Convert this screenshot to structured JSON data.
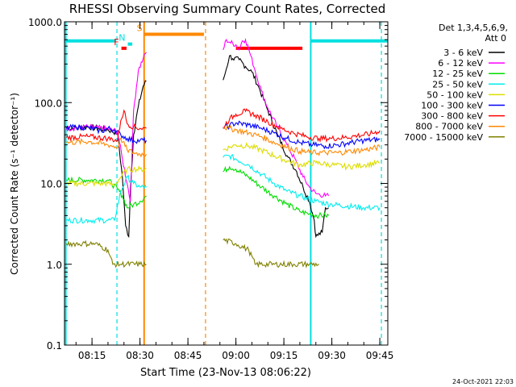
{
  "chart_data": {
    "type": "line",
    "title": "RHESSI Observing Summary Count Rates, Corrected",
    "xlabel": "Start Time (23-Nov-13 08:06:22)",
    "ylabel": "Corrected Count Rate (s⁻¹ detector⁻¹)",
    "ylim": [
      0.1,
      1000
    ],
    "y_scale": "log",
    "xlim_minutes_of_day": [
      486.4,
      587.5
    ],
    "x_ticks": [
      {
        "label": "08:15",
        "t": 495
      },
      {
        "label": "08:30",
        "t": 510
      },
      {
        "label": "08:45",
        "t": 525
      },
      {
        "label": "09:00",
        "t": 540
      },
      {
        "label": "09:15",
        "t": 555
      },
      {
        "label": "09:30",
        "t": 570
      },
      {
        "label": "09:45",
        "t": 585
      }
    ],
    "y_ticks": [
      {
        "label": "0.1",
        "v": 0.1
      },
      {
        "label": "1.0",
        "v": 1
      },
      {
        "label": "10.0",
        "v": 10
      },
      {
        "label": "100.0",
        "v": 100
      },
      {
        "label": "1000.0",
        "v": 1000
      }
    ],
    "legend_header": [
      "Det 1,3,4,5,6,9,",
      "Att 0"
    ],
    "legend_position": "right",
    "timestamp": "24-Oct-2021 22:03",
    "series": [
      {
        "name": "3 - 6 keV",
        "color": "#000000",
        "points": [
          [
            487,
            48
          ],
          [
            494,
            50
          ],
          [
            500,
            46
          ],
          [
            503,
            42
          ],
          [
            504.5,
            12
          ],
          [
            505.5,
            3
          ],
          [
            506.5,
            2.2
          ],
          [
            507,
            8
          ],
          [
            508,
            40
          ],
          [
            509.5,
            90
          ],
          [
            511,
            160
          ],
          [
            512,
            185
          ],
          [
            536,
            190
          ],
          [
            537,
            260
          ],
          [
            538,
            380
          ],
          [
            539,
            350
          ],
          [
            541,
            340
          ],
          [
            543,
            280
          ],
          [
            545,
            240
          ],
          [
            547,
            160
          ],
          [
            550,
            80
          ],
          [
            553,
            40
          ],
          [
            556,
            22
          ],
          [
            559,
            14
          ],
          [
            561,
            9
          ],
          [
            563,
            6
          ],
          [
            564.5,
            3.5
          ],
          [
            565,
            2.2
          ],
          [
            567,
            2.5
          ],
          [
            568,
            5
          ],
          [
            569,
            5
          ]
        ]
      },
      {
        "name": "6 - 12 keV",
        "color": "#ff00ff",
        "points": [
          [
            487,
            48
          ],
          [
            494,
            50
          ],
          [
            500,
            47
          ],
          [
            503,
            44
          ],
          [
            504.5,
            20
          ],
          [
            506,
            10
          ],
          [
            507,
            6
          ],
          [
            508,
            80
          ],
          [
            509.5,
            250
          ],
          [
            511,
            350
          ],
          [
            512,
            420
          ],
          [
            536,
            450
          ],
          [
            537,
            600
          ],
          [
            538,
            560
          ],
          [
            540,
            520
          ],
          [
            541,
            450
          ],
          [
            542,
            580
          ],
          [
            543,
            600
          ],
          [
            544,
            460
          ],
          [
            546,
            250
          ],
          [
            548,
            140
          ],
          [
            550,
            85
          ],
          [
            553,
            50
          ],
          [
            556,
            30
          ],
          [
            559,
            18
          ],
          [
            561,
            12
          ],
          [
            563,
            9
          ],
          [
            565,
            7.5
          ],
          [
            568,
            7
          ],
          [
            569,
            7
          ]
        ]
      },
      {
        "name": "12 - 25 keV",
        "color": "#00dd00",
        "points": [
          [
            487,
            11
          ],
          [
            494,
            11
          ],
          [
            500,
            11
          ],
          [
            503,
            8.5
          ],
          [
            504.5,
            7
          ],
          [
            506,
            5
          ],
          [
            508,
            5.5
          ],
          [
            510,
            6
          ],
          [
            512,
            7
          ],
          [
            536,
            14
          ],
          [
            538,
            16
          ],
          [
            540,
            15
          ],
          [
            544,
            12
          ],
          [
            548,
            9
          ],
          [
            552,
            7
          ],
          [
            556,
            5.5
          ],
          [
            560,
            4.5
          ],
          [
            563,
            4.2
          ],
          [
            566,
            4
          ],
          [
            568,
            4
          ],
          [
            569,
            4
          ]
        ]
      },
      {
        "name": "25 - 50 keV",
        "color": "#00eeee",
        "points": [
          [
            487,
            3.5
          ],
          [
            494,
            3.5
          ],
          [
            500,
            3.5
          ],
          [
            502,
            3.5
          ],
          [
            504,
            8
          ],
          [
            506,
            12
          ],
          [
            508,
            10
          ],
          [
            510,
            9
          ],
          [
            512,
            9
          ],
          [
            536,
            21
          ],
          [
            538,
            22
          ],
          [
            540,
            20
          ],
          [
            544,
            17
          ],
          [
            548,
            13
          ],
          [
            552,
            10
          ],
          [
            556,
            8
          ],
          [
            560,
            7
          ],
          [
            565,
            6
          ],
          [
            570,
            5.5
          ],
          [
            580,
            5
          ],
          [
            585,
            5
          ]
        ]
      },
      {
        "name": "50 - 100 keV",
        "color": "#dddd00",
        "points": [
          [
            487,
            10
          ],
          [
            494,
            10
          ],
          [
            500,
            10
          ],
          [
            502,
            9.5
          ],
          [
            504,
            12
          ],
          [
            506,
            15
          ],
          [
            508,
            15
          ],
          [
            510,
            15
          ],
          [
            512,
            15
          ],
          [
            536,
            26
          ],
          [
            538,
            28
          ],
          [
            540,
            30
          ],
          [
            544,
            29
          ],
          [
            548,
            26
          ],
          [
            552,
            22
          ],
          [
            556,
            19
          ],
          [
            560,
            17
          ],
          [
            565,
            18
          ],
          [
            570,
            17
          ],
          [
            575,
            16
          ],
          [
            580,
            17
          ],
          [
            585,
            18
          ]
        ]
      },
      {
        "name": "100 - 300 keV",
        "color": "#0000ff",
        "points": [
          [
            487,
            48
          ],
          [
            490,
            50
          ],
          [
            494,
            49
          ],
          [
            498,
            44
          ],
          [
            500,
            48
          ],
          [
            502,
            46
          ],
          [
            504,
            40
          ],
          [
            506,
            36
          ],
          [
            508,
            34
          ],
          [
            510,
            34
          ],
          [
            512,
            34
          ],
          [
            536,
            48
          ],
          [
            538,
            52
          ],
          [
            540,
            56
          ],
          [
            544,
            53
          ],
          [
            548,
            48
          ],
          [
            552,
            42
          ],
          [
            556,
            36
          ],
          [
            560,
            32
          ],
          [
            564,
            30
          ],
          [
            568,
            29
          ],
          [
            572,
            30
          ],
          [
            576,
            32
          ],
          [
            580,
            34
          ],
          [
            585,
            35
          ]
        ]
      },
      {
        "name": "300 - 800 keV",
        "color": "#ff0000",
        "points": [
          [
            487,
            37
          ],
          [
            494,
            38
          ],
          [
            500,
            36
          ],
          [
            503,
            34
          ],
          [
            504,
            60
          ],
          [
            505,
            80
          ],
          [
            506,
            55
          ],
          [
            508,
            50
          ],
          [
            510,
            48
          ],
          [
            512,
            48
          ],
          [
            536,
            50
          ],
          [
            538,
            62
          ],
          [
            540,
            72
          ],
          [
            543,
            78
          ],
          [
            546,
            70
          ],
          [
            550,
            58
          ],
          [
            554,
            48
          ],
          [
            558,
            42
          ],
          [
            562,
            38
          ],
          [
            566,
            36
          ],
          [
            570,
            36
          ],
          [
            574,
            37
          ],
          [
            578,
            39
          ],
          [
            582,
            41
          ],
          [
            585,
            45
          ]
        ]
      },
      {
        "name": "800 - 7000 keV",
        "color": "#ff8800",
        "points": [
          [
            487,
            32
          ],
          [
            494,
            33
          ],
          [
            500,
            30
          ],
          [
            503,
            28
          ],
          [
            504,
            36
          ],
          [
            506,
            26
          ],
          [
            508,
            24
          ],
          [
            510,
            23
          ],
          [
            512,
            23
          ],
          [
            536,
            50
          ],
          [
            538,
            48
          ],
          [
            540,
            46
          ],
          [
            544,
            42
          ],
          [
            548,
            38
          ],
          [
            552,
            32
          ],
          [
            556,
            28
          ],
          [
            560,
            25
          ],
          [
            564,
            24
          ],
          [
            568,
            24
          ],
          [
            572,
            24
          ],
          [
            576,
            25
          ],
          [
            580,
            26
          ],
          [
            585,
            28
          ]
        ]
      },
      {
        "name": "7000 - 15000 keV",
        "color": "#808000",
        "points": [
          [
            487,
            1.8
          ],
          [
            492,
            1.8
          ],
          [
            496,
            1.8
          ],
          [
            500,
            1.5
          ],
          [
            501.5,
            1.0
          ],
          [
            504,
            1.0
          ],
          [
            510,
            1.0
          ],
          [
            512,
            1.0
          ],
          [
            536,
            2.0
          ],
          [
            540,
            1.8
          ],
          [
            544,
            1.5
          ],
          [
            546,
            1.0
          ],
          [
            552,
            1.0
          ],
          [
            558,
            1.0
          ],
          [
            563,
            1.0
          ],
          [
            566,
            1.0
          ]
        ]
      }
    ],
    "state_bars": [
      {
        "label": "",
        "color": "#00e0e0",
        "t0": 486.4,
        "t1": 502.5,
        "v": 580
      },
      {
        "label": "F",
        "color": "#ff0000",
        "t0": 504.2,
        "t1": 505.8,
        "v": 470
      },
      {
        "label": "N",
        "color": "#00e0e0",
        "t0": 506.2,
        "t1": 507.6,
        "v": 530
      },
      {
        "label": "S",
        "color": "#ff8800",
        "t0": 511.5,
        "t1": 530,
        "v": 700
      },
      {
        "label": "",
        "color": "#ff0000",
        "t0": 540,
        "t1": 560.8,
        "v": 470
      },
      {
        "label": "",
        "color": "#00e0e0",
        "t0": 563.5,
        "t1": 587.5,
        "v": 580
      }
    ],
    "event_lines": [
      {
        "kind": "solid",
        "color": "#00e0e0",
        "t": 486.8
      },
      {
        "kind": "dashed",
        "color": "#00e0e0",
        "t": 502.8
      },
      {
        "kind": "solid",
        "color": "#ff8800",
        "t": 511.3
      },
      {
        "kind": "dashed",
        "color": "#ff8800",
        "t": 530.5
      },
      {
        "kind": "solid",
        "color": "#00e0e0",
        "t": 563.4
      },
      {
        "kind": "dashed",
        "color": "#00e0e0",
        "t": 585.5
      }
    ]
  }
}
